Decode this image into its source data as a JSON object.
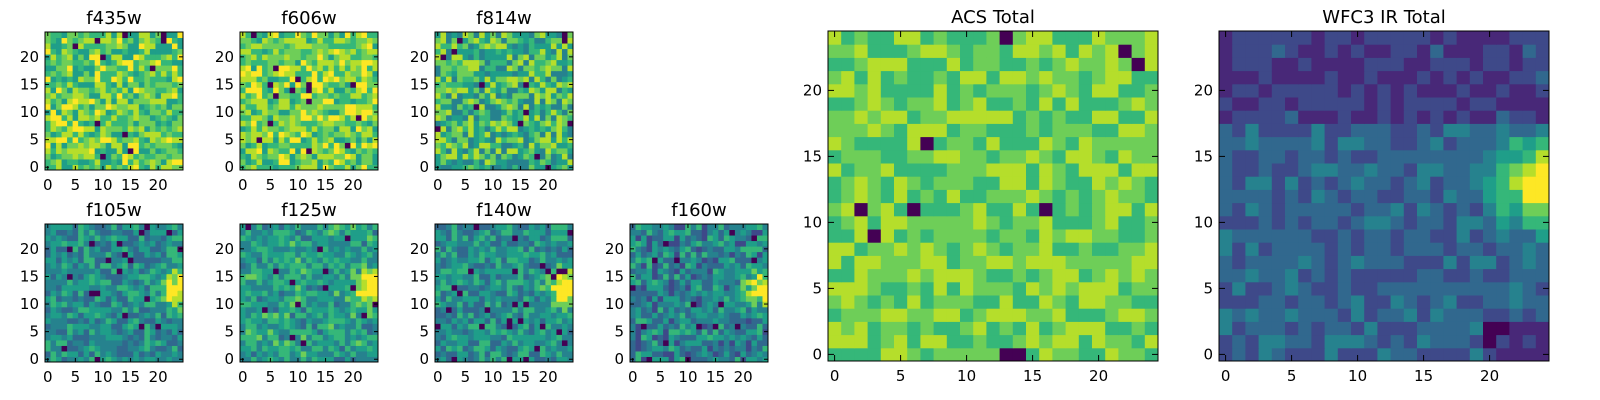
{
  "colors": {
    "viridis": [
      "#440154",
      "#482878",
      "#3e4989",
      "#31688e",
      "#26828e",
      "#1f9e89",
      "#35b779",
      "#6ece58",
      "#b5de2b",
      "#fde725"
    ],
    "frame": "#000000",
    "background": "#ffffff"
  },
  "chart_data": [
    {
      "type": "heatmap",
      "title": "f435w",
      "grid": [
        25,
        25
      ],
      "xticks": [
        "0",
        "5",
        "10",
        "15",
        "20"
      ],
      "yticks": [
        "0",
        "5",
        "10",
        "15",
        "20"
      ],
      "xlim": [
        0,
        24
      ],
      "ylim": [
        0,
        24
      ],
      "pattern": "noise",
      "mean": 0.72,
      "spread": 0.22,
      "seed": 11
    },
    {
      "type": "heatmap",
      "title": "f606w",
      "grid": [
        25,
        25
      ],
      "xticks": [
        "0",
        "5",
        "10",
        "15",
        "20"
      ],
      "yticks": [
        "0",
        "5",
        "10",
        "15",
        "20"
      ],
      "xlim": [
        0,
        24
      ],
      "ylim": [
        0,
        24
      ],
      "pattern": "noise",
      "mean": 0.76,
      "spread": 0.2,
      "seed": 23
    },
    {
      "type": "heatmap",
      "title": "f814w",
      "grid": [
        25,
        25
      ],
      "xticks": [
        "0",
        "5",
        "10",
        "15",
        "20"
      ],
      "yticks": [
        "0",
        "5",
        "10",
        "15",
        "20"
      ],
      "xlim": [
        0,
        24
      ],
      "ylim": [
        0,
        24
      ],
      "pattern": "noise",
      "mean": 0.65,
      "spread": 0.25,
      "seed": 37
    },
    {
      "type": "heatmap",
      "title": "f105w",
      "grid": [
        25,
        25
      ],
      "xticks": [
        "0",
        "5",
        "10",
        "15",
        "20"
      ],
      "yticks": [
        "0",
        "5",
        "10",
        "15",
        "20"
      ],
      "xlim": [
        0,
        24
      ],
      "ylim": [
        0,
        24
      ],
      "pattern": "blob",
      "mean": 0.48,
      "spread": 0.16,
      "seed": 41
    },
    {
      "type": "heatmap",
      "title": "f125w",
      "grid": [
        25,
        25
      ],
      "xticks": [
        "0",
        "5",
        "10",
        "15",
        "20"
      ],
      "yticks": [
        "0",
        "5",
        "10",
        "15",
        "20"
      ],
      "xlim": [
        0,
        24
      ],
      "ylim": [
        0,
        24
      ],
      "pattern": "blob",
      "mean": 0.55,
      "spread": 0.17,
      "seed": 53
    },
    {
      "type": "heatmap",
      "title": "f140w",
      "grid": [
        25,
        25
      ],
      "xticks": [
        "0",
        "5",
        "10",
        "15",
        "20"
      ],
      "yticks": [
        "0",
        "5",
        "10",
        "15",
        "20"
      ],
      "xlim": [
        0,
        24
      ],
      "ylim": [
        0,
        24
      ],
      "pattern": "blob",
      "mean": 0.5,
      "spread": 0.16,
      "seed": 67
    },
    {
      "type": "heatmap",
      "title": "f160w",
      "grid": [
        25,
        25
      ],
      "xticks": [
        "0",
        "5",
        "10",
        "15",
        "20"
      ],
      "yticks": [
        "0",
        "5",
        "10",
        "15",
        "20"
      ],
      "xlim": [
        0,
        24
      ],
      "ylim": [
        0,
        24
      ],
      "pattern": "blob",
      "mean": 0.45,
      "spread": 0.2,
      "seed": 79
    },
    {
      "type": "heatmap",
      "title": "ACS Total",
      "grid": [
        25,
        25
      ],
      "xticks": [
        "0",
        "5",
        "10",
        "15",
        "20"
      ],
      "yticks": [
        "0",
        "5",
        "10",
        "15",
        "20"
      ],
      "xlim": [
        0,
        24
      ],
      "ylim": [
        0,
        24
      ],
      "pattern": "noise",
      "mean": 0.74,
      "spread": 0.13,
      "seed": 97
    },
    {
      "type": "heatmap",
      "title": "WFC3 IR Total",
      "grid": [
        25,
        25
      ],
      "xticks": [
        "0",
        "5",
        "10",
        "15",
        "20"
      ],
      "yticks": [
        "0",
        "5",
        "10",
        "15",
        "20"
      ],
      "xlim": [
        0,
        24
      ],
      "ylim": [
        0,
        24
      ],
      "pattern": "smooth",
      "mean": 0.33,
      "spread": 0.1,
      "seed": 113
    }
  ]
}
